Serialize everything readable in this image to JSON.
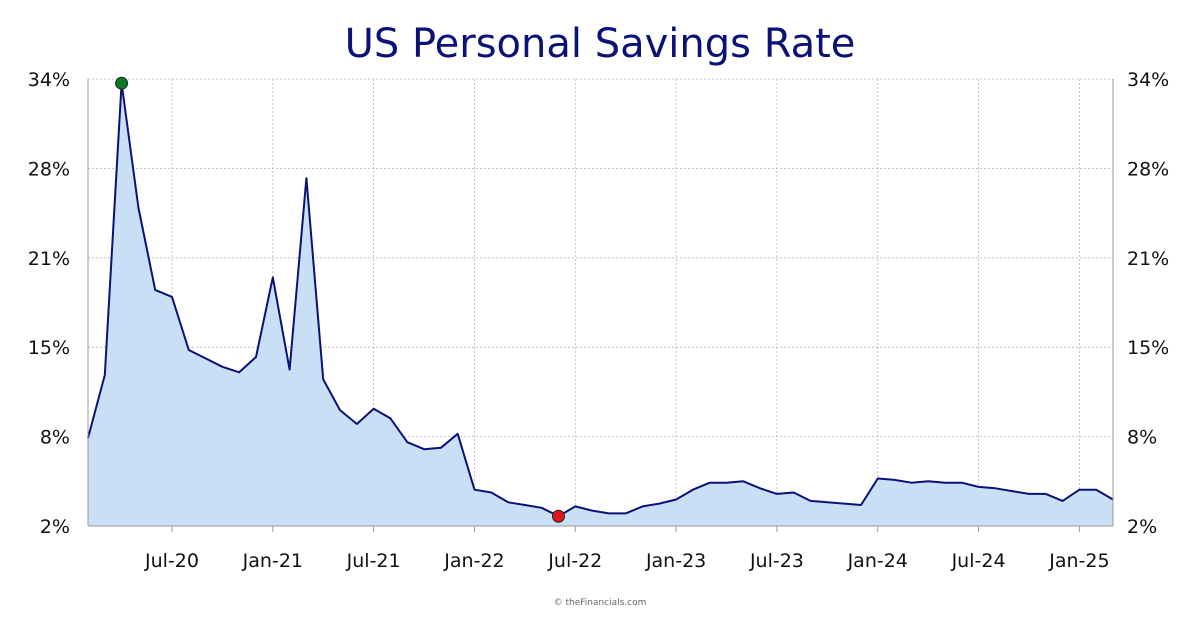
{
  "title": "US Personal Savings Rate",
  "credit": "© theFinancials.com",
  "colors": {
    "title": "#0b1177",
    "line": "#0b1177",
    "fill": "#c9dff6",
    "grid": "#b5b5b5",
    "max_marker": "#0a7a1e",
    "min_marker": "#e0121b"
  },
  "chart_data": {
    "type": "area",
    "title": "US Personal Savings Rate",
    "xlabel": "",
    "ylabel": "",
    "ylim": [
      2,
      34
    ],
    "y_ticks": [
      {
        "value": 2,
        "label": "2%"
      },
      {
        "value": 8.4,
        "label": "8%"
      },
      {
        "value": 14.8,
        "label": "15%"
      },
      {
        "value": 21.2,
        "label": "21%"
      },
      {
        "value": 27.6,
        "label": "28%"
      },
      {
        "value": 34,
        "label": "34%"
      }
    ],
    "x_ticks": [
      "Jul-20",
      "Jan-21",
      "Jul-21",
      "Jan-22",
      "Jul-22",
      "Jan-23",
      "Jul-23",
      "Jan-24",
      "Jul-24",
      "Jan-25"
    ],
    "grid": true,
    "y_axis_both_sides": true,
    "x": [
      "Feb-20",
      "Mar-20",
      "Apr-20",
      "May-20",
      "Jun-20",
      "Jul-20",
      "Aug-20",
      "Sep-20",
      "Oct-20",
      "Nov-20",
      "Dec-20",
      "Jan-21",
      "Feb-21",
      "Mar-21",
      "Apr-21",
      "May-21",
      "Jun-21",
      "Jul-21",
      "Aug-21",
      "Sep-21",
      "Oct-21",
      "Nov-21",
      "Dec-21",
      "Jan-22",
      "Feb-22",
      "Mar-22",
      "Apr-22",
      "May-22",
      "Jun-22",
      "Jul-22",
      "Aug-22",
      "Sep-22",
      "Oct-22",
      "Nov-22",
      "Dec-22",
      "Jan-23",
      "Feb-23",
      "Mar-23",
      "Apr-23",
      "May-23",
      "Jun-23",
      "Jul-23",
      "Aug-23",
      "Sep-23",
      "Oct-23",
      "Nov-23",
      "Dec-23",
      "Jan-24",
      "Feb-24",
      "Mar-24",
      "Apr-24",
      "May-24",
      "Jun-24",
      "Jul-24",
      "Aug-24",
      "Sep-24",
      "Oct-24",
      "Nov-24",
      "Dec-24",
      "Jan-25",
      "Feb-25",
      "Mar-25"
    ],
    "series": [
      {
        "values": [
          8.3,
          12.8,
          33.7,
          24.8,
          18.9,
          18.4,
          14.6,
          14.0,
          13.4,
          13.0,
          14.1,
          19.8,
          13.2,
          26.9,
          12.5,
          10.3,
          9.3,
          10.4,
          9.7,
          8.0,
          7.5,
          7.6,
          8.6,
          4.6,
          4.4,
          3.7,
          3.5,
          3.3,
          2.7,
          3.4,
          3.1,
          2.9,
          2.9,
          3.4,
          3.6,
          3.9,
          4.6,
          5.1,
          5.1,
          5.2,
          4.7,
          4.3,
          4.4,
          3.8,
          3.7,
          3.6,
          3.5,
          5.4,
          5.3,
          5.1,
          5.2,
          5.1,
          5.1,
          4.8,
          4.7,
          4.5,
          4.3,
          4.3,
          3.8,
          4.6,
          4.6,
          3.9
        ]
      }
    ],
    "highlights": [
      {
        "label": "max",
        "x": "Apr-20",
        "value": 33.7
      },
      {
        "label": "min",
        "x": "Jun-22",
        "value": 2.7
      }
    ]
  }
}
